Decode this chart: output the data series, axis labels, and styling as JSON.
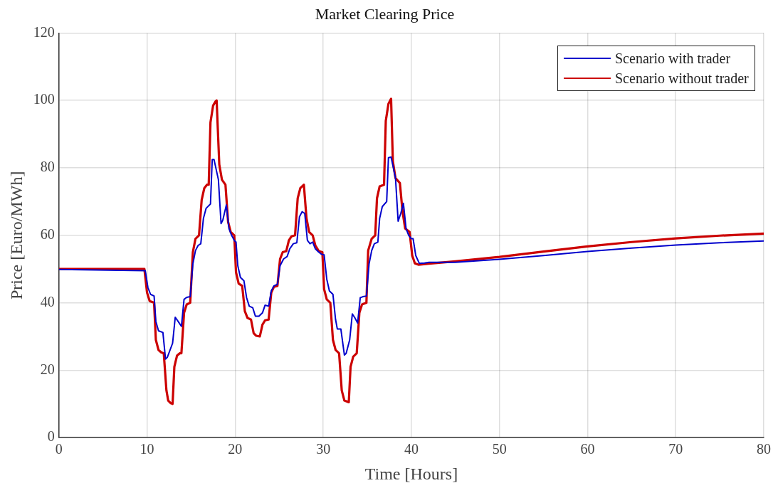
{
  "chart_data": {
    "type": "line",
    "title": "Market Clearing Price",
    "xlabel": "Time [Hours]",
    "ylabel": "Price [Euro/MWh]",
    "xlim": [
      0,
      80
    ],
    "xticks": [
      0,
      10,
      20,
      30,
      40,
      50,
      60,
      70,
      80
    ],
    "ylim": [
      0,
      120
    ],
    "yticks": [
      0,
      20,
      40,
      60,
      80,
      100,
      120
    ],
    "grid": true,
    "legend": "top right",
    "marker": "none",
    "line_style": "solid",
    "series": [
      {
        "name": "Scenario with trader",
        "color": "#0000cc",
        "x": [
          0,
          9.8,
          10.1,
          10.4,
          10.8,
          11,
          11.3,
          11.8,
          12.1,
          12.3,
          12.9,
          13.2,
          13.6,
          13.9,
          14.2,
          14.5,
          14.9,
          15.2,
          15.5,
          15.8,
          16.1,
          16.4,
          16.7,
          17.2,
          17.4,
          17.6,
          18.1,
          18.4,
          18.6,
          19,
          19.3,
          19.6,
          19.9,
          20.1,
          20.3,
          20.6,
          21,
          21.3,
          21.6,
          22,
          22.3,
          22.7,
          23.1,
          23.4,
          23.8,
          24.1,
          24.4,
          24.8,
          25.1,
          25.5,
          25.9,
          26.2,
          26.6,
          27,
          27.3,
          27.6,
          27.9,
          28.2,
          28.5,
          28.8,
          29.1,
          29.5,
          29.8,
          30.1,
          30.4,
          30.7,
          31.1,
          31.4,
          31.6,
          32,
          32.4,
          32.6,
          33,
          33.3,
          33.6,
          33.9,
          34.2,
          34.5,
          34.9,
          35.2,
          35.5,
          35.8,
          36.2,
          36.4,
          36.7,
          37.2,
          37.4,
          37.7,
          38.2,
          38.5,
          38.8,
          39.1,
          39.4,
          39.7,
          40,
          40.2,
          40.5,
          40.9,
          41.5,
          42,
          45,
          50,
          55,
          60,
          65,
          70,
          75,
          80
        ],
        "values": [
          49.9,
          49.5,
          44.5,
          42.5,
          42,
          34.5,
          31.7,
          31.2,
          23.3,
          23.8,
          28,
          35.7,
          34.2,
          33,
          41,
          41.6,
          41.8,
          51.5,
          55.5,
          57,
          57.5,
          65,
          68,
          69.3,
          82.5,
          82.5,
          76.5,
          63.5,
          64.5,
          69,
          62,
          60,
          58.5,
          58,
          51,
          47.5,
          46.5,
          41.5,
          39,
          38.5,
          36,
          36,
          37,
          39.3,
          39,
          43.5,
          45,
          45.5,
          51,
          53,
          53.7,
          56,
          57.5,
          57.8,
          65.5,
          67,
          66.5,
          58.5,
          57.5,
          58,
          56,
          55,
          54.4,
          54.2,
          47,
          43.5,
          42.5,
          35,
          32.2,
          32.2,
          24.5,
          25,
          29,
          36.7,
          35.5,
          34,
          41.5,
          41.8,
          42,
          51.5,
          55.5,
          57.5,
          58,
          65,
          68.5,
          70,
          83,
          83.2,
          77,
          64.2,
          66.5,
          69.5,
          62,
          60,
          59,
          59,
          54,
          51.7,
          51.8,
          52,
          52,
          52.9,
          54,
          55.2,
          56.2,
          57.1,
          57.8,
          58.3
        ]
      },
      {
        "name": "Scenario without trader",
        "color": "#cc0000",
        "x": [
          0,
          9.7,
          10,
          10.3,
          10.8,
          11,
          11.3,
          11.6,
          11.9,
          12.2,
          12.4,
          12.7,
          12.9,
          13.1,
          13.4,
          13.7,
          13.9,
          14.2,
          14.5,
          14.9,
          15.2,
          15.5,
          15.9,
          16.2,
          16.5,
          16.8,
          17,
          17.2,
          17.5,
          17.8,
          17.9,
          18.2,
          18.5,
          18.9,
          19.2,
          19.5,
          19.9,
          20.1,
          20.4,
          20.8,
          21.1,
          21.4,
          21.8,
          22.1,
          22.4,
          22.8,
          23.1,
          23.4,
          23.8,
          24.1,
          24.4,
          24.8,
          25.1,
          25.4,
          25.8,
          26.1,
          26.4,
          26.8,
          27.1,
          27.4,
          27.8,
          28.1,
          28.4,
          28.8,
          29.1,
          29.5,
          29.9,
          30.1,
          30.4,
          30.8,
          31.1,
          31.4,
          31.8,
          32.1,
          32.4,
          32.9,
          33.1,
          33.4,
          33.8,
          34.1,
          34.4,
          34.9,
          35.1,
          35.5,
          35.9,
          36.1,
          36.4,
          36.9,
          37.1,
          37.4,
          37.7,
          37.9,
          38.2,
          38.7,
          39,
          39.3,
          39.8,
          40.1,
          40.4,
          40.8,
          42,
          45,
          50,
          55,
          60,
          65,
          70,
          75,
          80
        ],
        "values": [
          50,
          50,
          43,
          40.5,
          40,
          29,
          26,
          25.3,
          25,
          14,
          11,
          10.2,
          10,
          21,
          24.3,
          25,
          25,
          37,
          39.5,
          40,
          55,
          59,
          60,
          70.5,
          74,
          75,
          75,
          93.5,
          98.5,
          99.8,
          100,
          81,
          76.5,
          75,
          64,
          61,
          60,
          49,
          45.7,
          45,
          37.5,
          35.5,
          35,
          31,
          30.2,
          30,
          33.5,
          34.8,
          35,
          43,
          44.7,
          45,
          53,
          55,
          55.3,
          58.5,
          59.7,
          60,
          71,
          74,
          75,
          65,
          61,
          60,
          57,
          55.3,
          55,
          44,
          41,
          40,
          29,
          26,
          25,
          14,
          11,
          10.5,
          21,
          24,
          25,
          37,
          39.5,
          40,
          55.5,
          59,
          60,
          71,
          74.5,
          75,
          94,
          99,
          100.5,
          82,
          77,
          75.5,
          67,
          62,
          61,
          54,
          51.7,
          51.3,
          51.6,
          52.3,
          53.6,
          55.2,
          56.7,
          58,
          59.1,
          59.9,
          60.5
        ]
      }
    ]
  }
}
